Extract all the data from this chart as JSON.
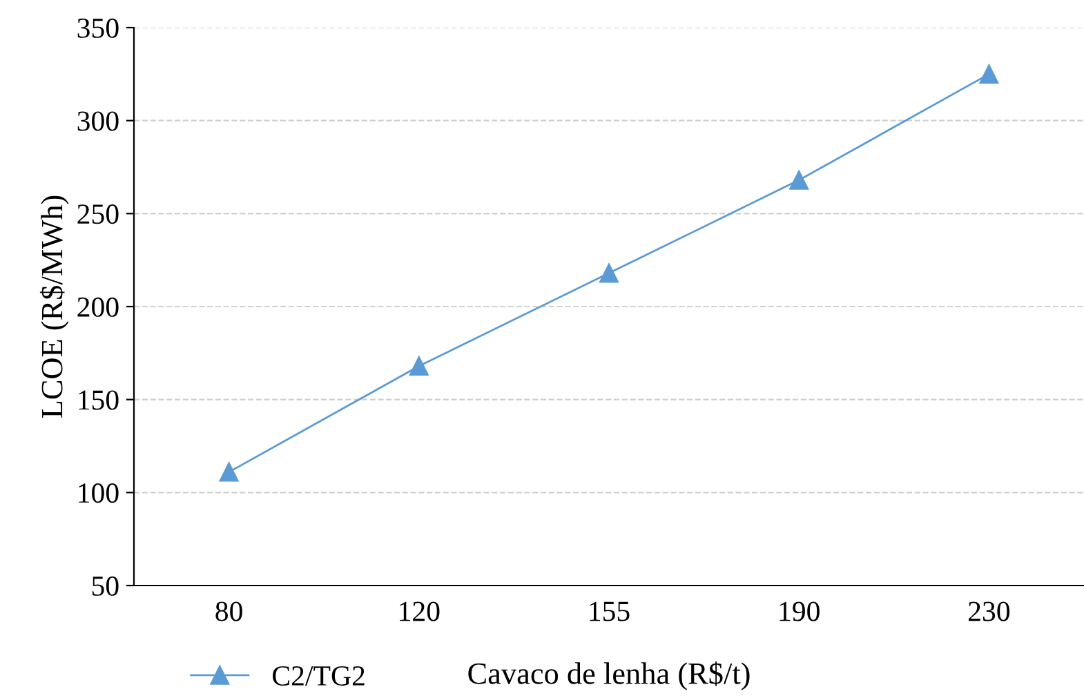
{
  "chart_data": {
    "type": "line",
    "xlabel": "Cavaco de lenha (R$/t)",
    "ylabel": "LCOE (R$/MWh)",
    "categories": [
      "80",
      "120",
      "155",
      "190",
      "230"
    ],
    "series": [
      {
        "name": "C2/TG2",
        "color": "#5b9bd5",
        "values": [
          111,
          168,
          218,
          268,
          325
        ]
      }
    ],
    "ylim": [
      50,
      350
    ],
    "yticks": [
      50,
      100,
      150,
      200,
      250,
      300,
      350
    ],
    "grid": "y",
    "legend": "bottom",
    "marker": "triangle",
    "line_style": "solid"
  }
}
